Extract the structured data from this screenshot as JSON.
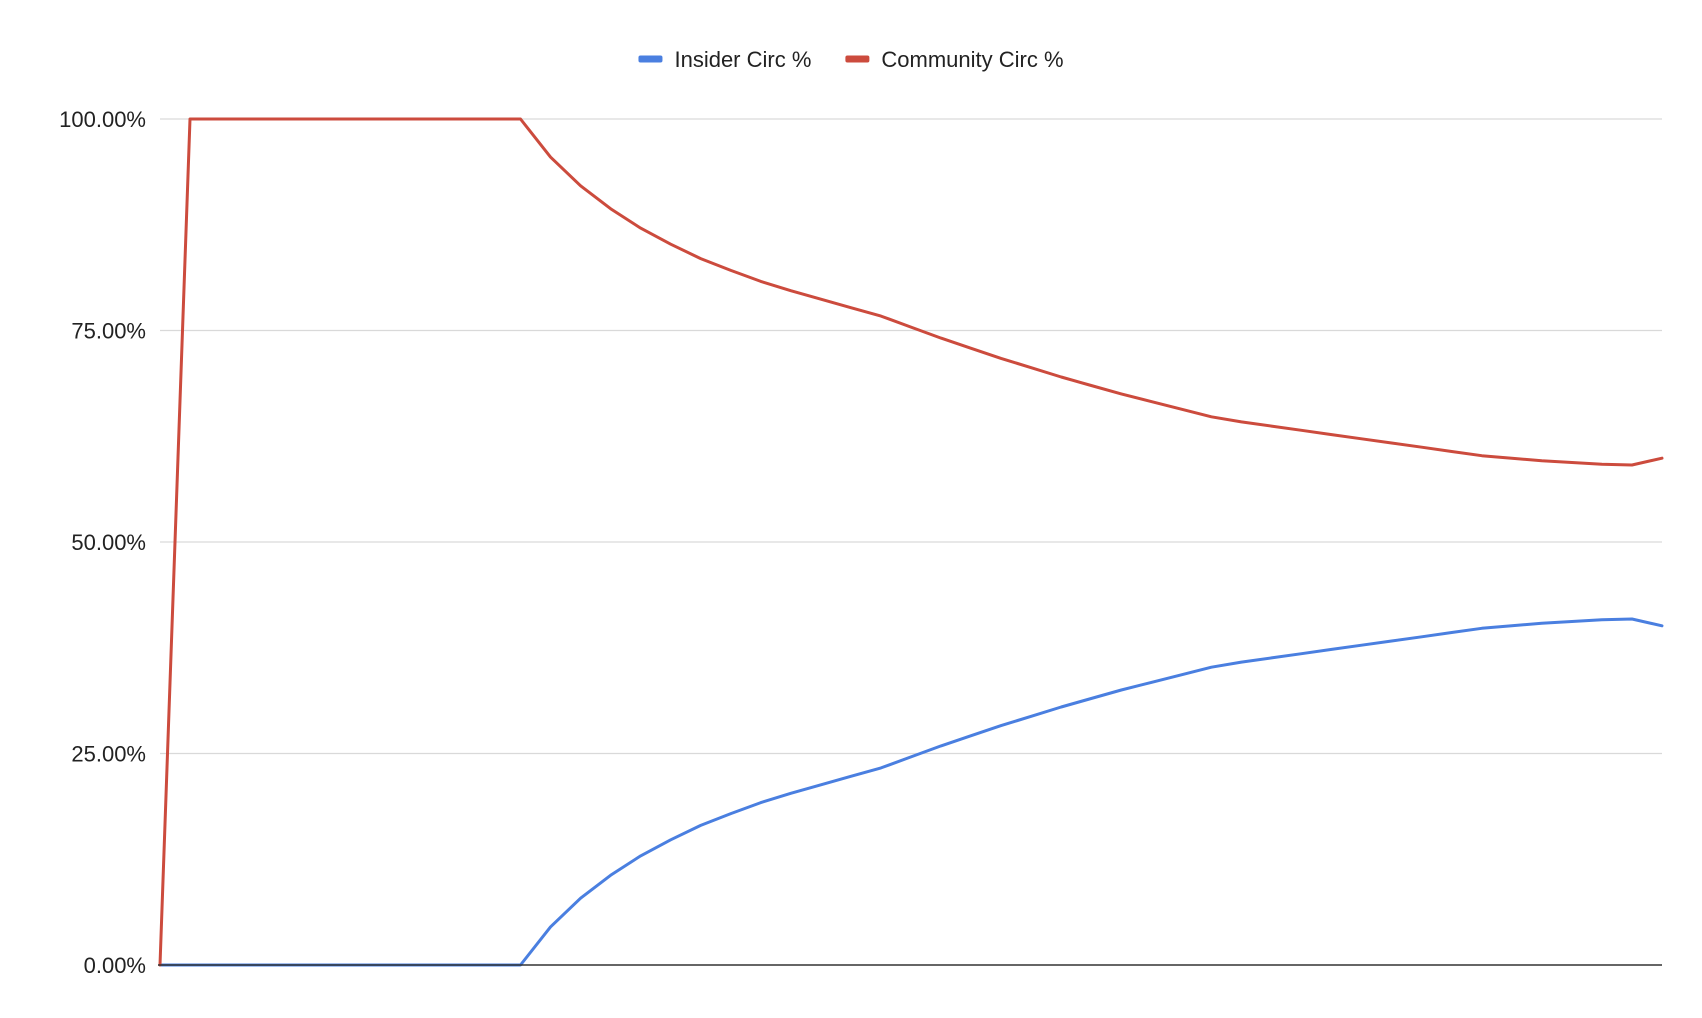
{
  "chart_data": {
    "type": "line",
    "title": "",
    "xlabel": "",
    "ylabel": "",
    "ylim": [
      0,
      100
    ],
    "y_ticks": [
      0,
      25,
      50,
      75,
      100
    ],
    "y_tick_labels": [
      "0.00%",
      "25.00%",
      "50.00%",
      "75.00%",
      "100.00%"
    ],
    "grid": true,
    "legend_position": "top",
    "x_tick_labels_shown": false,
    "x": [
      0,
      1,
      2,
      3,
      4,
      5,
      6,
      7,
      8,
      9,
      10,
      11,
      12,
      13,
      14,
      15,
      16,
      17,
      18,
      19,
      20,
      21,
      22,
      23,
      24,
      25,
      26,
      27,
      28,
      29,
      30,
      31,
      32,
      33,
      34,
      35,
      36,
      37,
      38,
      39,
      40,
      41,
      42,
      43,
      44,
      45,
      46,
      47,
      48,
      49,
      50
    ],
    "series": [
      {
        "name": "Insider Circ %",
        "color": "#4a7fe0",
        "values": [
          0,
          0,
          0,
          0,
          0,
          0,
          0,
          0,
          0,
          0,
          0,
          0,
          0,
          4.5,
          7.9,
          10.6,
          12.9,
          14.8,
          16.5,
          17.9,
          19.2,
          20.3,
          21.3,
          22.3,
          23.3,
          24.6,
          25.9,
          27.1,
          28.3,
          29.4,
          30.5,
          31.5,
          32.5,
          33.4,
          34.3,
          35.2,
          35.8,
          36.3,
          36.8,
          37.3,
          37.8,
          38.3,
          38.8,
          39.3,
          39.8,
          40.1,
          40.4,
          40.6,
          40.8,
          40.9,
          40.1
        ],
        "note_count": 51
      },
      {
        "name": "Community Circ %",
        "color": "#cc4b3d",
        "values": [
          0,
          100,
          100,
          100,
          100,
          100,
          100,
          100,
          100,
          100,
          100,
          100,
          100,
          95.5,
          92.1,
          89.4,
          87.1,
          85.2,
          83.5,
          82.1,
          80.8,
          79.7,
          78.7,
          77.7,
          76.7,
          75.4,
          74.1,
          72.9,
          71.7,
          70.6,
          69.5,
          68.5,
          67.5,
          66.6,
          65.7,
          64.8,
          64.2,
          63.7,
          63.2,
          62.7,
          62.2,
          61.7,
          61.2,
          60.7,
          60.2,
          59.9,
          59.6,
          59.4,
          59.2,
          59.1,
          59.9
        ]
      }
    ]
  }
}
